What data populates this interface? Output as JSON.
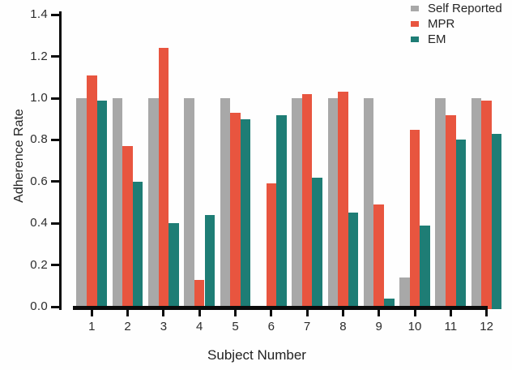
{
  "chart_data": {
    "type": "bar",
    "title": "",
    "xlabel": "Subject Number",
    "ylabel": "Adherence Rate",
    "categories": [
      "1",
      "2",
      "3",
      "4",
      "5",
      "6",
      "7",
      "8",
      "9",
      "10",
      "11",
      "12"
    ],
    "series": [
      {
        "name": "Self Reported",
        "color": "#a8a8a8",
        "values": [
          1.0,
          1.0,
          1.0,
          1.0,
          1.0,
          0,
          1.0,
          1.0,
          1.0,
          0.14,
          1.0,
          1.0
        ]
      },
      {
        "name": "MPR",
        "color": "#e8553f",
        "values": [
          1.11,
          0.77,
          1.24,
          0.13,
          0.93,
          0.59,
          1.02,
          1.03,
          0.49,
          0.85,
          0.92,
          0.99
        ]
      },
      {
        "name": "EM",
        "color": "#1e7d75",
        "values": [
          0.99,
          0.6,
          0.4,
          0.44,
          0.9,
          0.92,
          0.62,
          0.45,
          0.04,
          0.39,
          0.8,
          0.83
        ]
      }
    ],
    "ylim": [
      0,
      1.4
    ],
    "yticks": [
      "0.0",
      "0.2",
      "0.4",
      "0.6",
      "0.8",
      "1.0",
      "1.2",
      "1.4"
    ],
    "ytick_step": 0.2,
    "legend_position": "top-right",
    "grid": false,
    "axis_color": "#0b0b0b"
  }
}
